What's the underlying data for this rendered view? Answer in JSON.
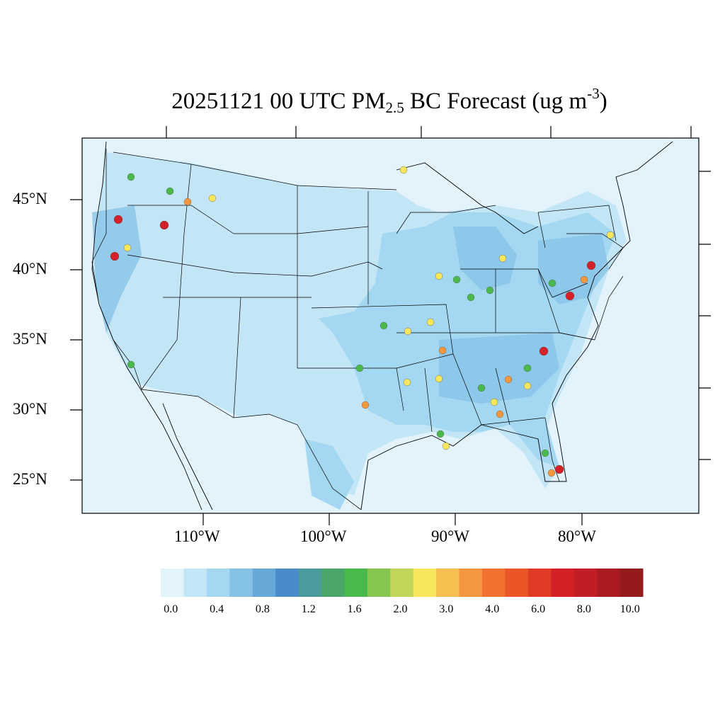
{
  "title": {
    "prefix": "20251121 00 UTC PM",
    "subscript": "2.5",
    "middle": " BC Forecast (ug m",
    "superscript": "-3",
    "suffix": ")"
  },
  "lat_labels": [
    "45°N",
    "40°N",
    "35°N",
    "30°N",
    "25°N"
  ],
  "lon_labels": [
    "110°W",
    "100°W",
    "90°W",
    "80°W"
  ],
  "colorbar": {
    "colors": [
      "#e3f3fb",
      "#c3e6f7",
      "#a4d8f2",
      "#85c2e6",
      "#66a8d8",
      "#4a8bc9",
      "#4a9c9c",
      "#4aa56a",
      "#4ab84a",
      "#84c64f",
      "#c2d65a",
      "#f8e65c",
      "#f6bf4f",
      "#f4973f",
      "#f2712f",
      "#ea5628",
      "#e03b26",
      "#d42027",
      "#c01d24",
      "#ab1a21",
      "#951a1d"
    ],
    "labels": [
      "0.0",
      "0.4",
      "0.8",
      "1.2",
      "1.6",
      "2.0",
      "3.0",
      "4.0",
      "6.0",
      "8.0",
      "10.0"
    ]
  },
  "map_colors": {
    "background": "#e3f3fb",
    "light": "#c3e6f7",
    "medium": "#a4d8f2",
    "blue": "#85c2e6",
    "green": "#4ab84a",
    "yellow": "#f8e65c",
    "orange": "#f4973f",
    "red": "#d42027"
  }
}
